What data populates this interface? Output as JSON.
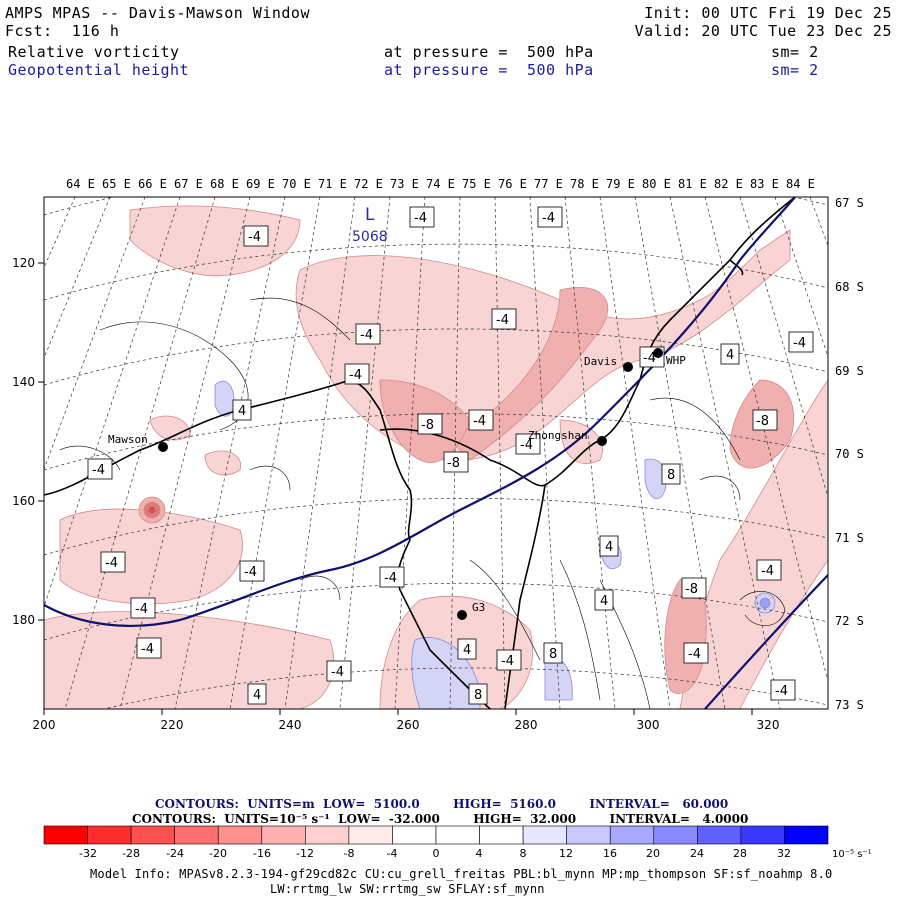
{
  "header": {
    "title": "AMPS MPAS -- Davis-Mawson Window",
    "init": "Init: 00 UTC Fri 19 Dec 25",
    "fcst": "Fcst:  116 h",
    "valid": "Valid: 20 UTC Tue 23 Dec 25",
    "field1": {
      "name": "Relative vorticity",
      "pressure": "at pressure =  500 hPa",
      "sm": "sm= 2"
    },
    "field2": {
      "name": "Geopotential height",
      "pressure": "at pressure =  500 hPa",
      "sm": "sm= 2"
    }
  },
  "map": {
    "lon_labels": [
      "64 E",
      "65 E",
      "66 E",
      "67 E",
      "68 E",
      "69 E",
      "70 E",
      "71 E",
      "72 E",
      "73 E",
      "74 E",
      "75 E",
      "76 E",
      "77 E",
      "78 E",
      "79 E",
      "80 E",
      "81 E",
      "82 E",
      "83 E",
      "84 E"
    ],
    "lat_labels": [
      "67 S",
      "68 S",
      "69 S",
      "70 S",
      "71 S",
      "72 S",
      "73 S"
    ],
    "x_ticks": [
      "200",
      "220",
      "240",
      "260",
      "280",
      "300",
      "320"
    ],
    "y_ticks": [
      "120",
      "140",
      "160",
      "180"
    ],
    "stations": [
      {
        "name": "Mawson"
      },
      {
        "name": "Davis"
      },
      {
        "name": "WHP"
      },
      {
        "name": "Zhongshan"
      },
      {
        "name": "G3"
      }
    ],
    "low_marker": {
      "letter": "L",
      "value": "5068"
    },
    "contour_labels": [
      "-4",
      "-8",
      "4",
      "8"
    ],
    "colors": {
      "height_contour": "#10106e",
      "vort_positive": "#f6c9c9",
      "vort_negative": "#c8c8f0",
      "coast": "#000000"
    }
  },
  "colorbar": {
    "contours1": "CONTOURS:  UNITS=m  LOW=  5100.0        HIGH=  5160.0        INTERVAL=   60.000",
    "contours2": "CONTOURS:  UNITS=10⁻⁵ s⁻¹  LOW=  -32.000        HIGH=  32.000        INTERVAL=   4.0000",
    "ticks": [
      "-32",
      "-28",
      "-24",
      "-20",
      "-16",
      "-12",
      "-8",
      "-4",
      "0",
      "4",
      "8",
      "12",
      "16",
      "20",
      "24",
      "28",
      "32"
    ],
    "units": "10⁻⁵ s⁻¹",
    "colors": [
      "#ff0000",
      "#ff2d2d",
      "#ff5050",
      "#ff7070",
      "#ff9090",
      "#ffb0b0",
      "#ffd0d0",
      "#ffeaea",
      "#ffffff",
      "#ffffff",
      "#e6e6ff",
      "#c8c8ff",
      "#a8a8ff",
      "#8888ff",
      "#6060ff",
      "#3838ff",
      "#0000ff"
    ]
  },
  "model_info": {
    "line1": "Model Info: MPASv8.2.3-194-gf29cd82c CU:cu_grell_freitas PBL:bl_mynn MP:mp_thompson SF:sf_noahmp 8.0",
    "line2": "LW:rrtmg_lw SW:rrtmg_sw SFLAY:sf_mynn"
  }
}
